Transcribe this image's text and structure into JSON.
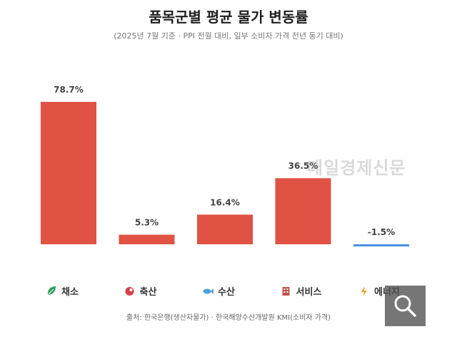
{
  "header": {
    "title": "품목군별 평균 물가 변동률",
    "subtitle": "(2025년 7월 기준 · PPI 전월 대비, 일부 소비자 가격 전년 동기 대비)"
  },
  "chart_data": {
    "type": "bar",
    "title": "품목군별 평균 물가 변동률",
    "subtitle": "(2025년 7월 기준 · PPI 전월 대비, 일부 소비자 가격 전년 동기 대비)",
    "categories": [
      "채소",
      "축산",
      "수산",
      "서비스",
      "에너지"
    ],
    "values": [
      78.7,
      5.3,
      16.4,
      36.5,
      -1.5
    ],
    "labels": [
      "78.7%",
      "5.3%",
      "16.4%",
      "36.5%",
      "-1.5%"
    ],
    "icons": [
      "leaf-icon",
      "meat-icon",
      "fish-icon",
      "building-icon",
      "lightning-icon"
    ],
    "ylim": [
      -1.5,
      78.7
    ],
    "grid": false,
    "legend": "none",
    "xlabel": "",
    "ylabel": ""
  },
  "colors": {
    "positive": "#e05243",
    "negative": "#4a90e2",
    "label": "#444444",
    "category": "#333333",
    "icon_leaf": "#2e9e5b",
    "icon_meat": "#d6404b",
    "icon_fish": "#4a9fd8",
    "icon_building": "#c0504d",
    "icon_lightning": "#f0a030"
  },
  "watermark": "매일경제신문",
  "source": "출처: 한국은행(생산자물가) · 한국해양수산개발원 KMI(소비자 가격)",
  "zoom_button": {
    "icon": "magnifier-icon"
  }
}
